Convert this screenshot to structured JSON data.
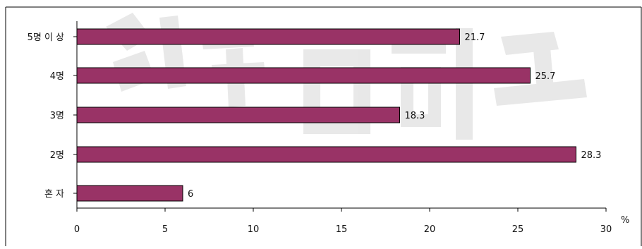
{
  "chart_data": {
    "type": "bar",
    "orientation": "horizontal",
    "categories": [
      "5명 이 상",
      "4명",
      "3명",
      "2명",
      "혼 자"
    ],
    "values": [
      21.7,
      25.7,
      18.3,
      28.3,
      6
    ],
    "value_labels": [
      "21.7",
      "25.7",
      "18.3",
      "28.3",
      "6"
    ],
    "title": "",
    "xlabel": "%",
    "ylabel": "",
    "xlim": [
      0,
      30
    ],
    "x_ticks": [
      0,
      5,
      10,
      15,
      20,
      25,
      30
    ],
    "grid": false,
    "legend": "none",
    "bar_color": "#993366",
    "bar_edge_color": "#000000"
  }
}
